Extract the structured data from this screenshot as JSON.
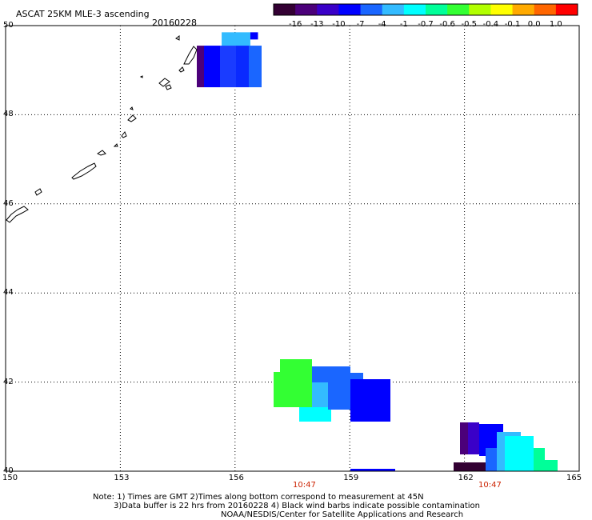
{
  "title": "ASCAT 25KM MLE-3 ascending",
  "date": "20160228",
  "colorbar": {
    "labels": [
      "-16",
      "-13",
      "-10",
      "-7",
      "-4",
      "-1",
      "-0.7",
      "-0.6",
      "-0.5",
      "-0.4",
      "-0.1",
      "0.0",
      "1.0"
    ],
    "colors": [
      "#330033",
      "#4b007a",
      "#3a00c8",
      "#0000ff",
      "#1a66ff",
      "#33bbff",
      "#00ffff",
      "#00ff99",
      "#33ff33",
      "#b2ff00",
      "#ffff00",
      "#ffaa00",
      "#ff6600",
      "#ff0000"
    ]
  },
  "map": {
    "x_axis": {
      "min": 150,
      "max": 165,
      "ticks": [
        "150",
        "153",
        "156",
        "159",
        "162",
        "165"
      ]
    },
    "y_axis": {
      "min": 40,
      "max": 50,
      "ticks": [
        "50",
        "48",
        "46",
        "44",
        "42",
        "40"
      ],
      "tick_labels_shown": [
        "50",
        "48",
        "46",
        "44",
        "42",
        "40"
      ]
    },
    "grid": "dotted"
  },
  "times": [
    "10:47",
    "10:47"
  ],
  "notes": [
    "Note: 1) Times are GMT 2)Times along bottom correspond to measurement at 45N",
    "3)Data buffer is 22 hrs from 20160228 4) Black wind barbs indicate possible contamination",
    "NOAA/NESDIS/Center for Satellite Applications and Research"
  ],
  "swaths": [
    {
      "name": "north-swath",
      "cells": [
        {
          "lon": 155.75,
          "lat": 49.75,
          "v": "-1"
        },
        {
          "lon": 156.25,
          "lat": 49.75,
          "v": "-4"
        },
        {
          "lon": 155.1,
          "lat": 49.2,
          "v": "-13"
        },
        {
          "lon": 155.5,
          "lat": 49.2,
          "v": "-7"
        },
        {
          "lon": 156.0,
          "lat": 49.2,
          "v": "-7"
        },
        {
          "lon": 156.5,
          "lat": 49.2,
          "v": "-4"
        }
      ]
    },
    {
      "name": "middle-swath",
      "cells": [
        {
          "lon": 157.5,
          "lat": 42.0,
          "v": "-0.5"
        },
        {
          "lon": 158.2,
          "lat": 41.5,
          "v": "-1"
        },
        {
          "lon": 159.0,
          "lat": 41.8,
          "v": "-7"
        }
      ]
    },
    {
      "name": "southeast-swath",
      "cells": [
        {
          "lon": 162.5,
          "lat": 40.5,
          "v": "-13"
        },
        {
          "lon": 163.2,
          "lat": 40.3,
          "v": "-1"
        }
      ]
    }
  ]
}
